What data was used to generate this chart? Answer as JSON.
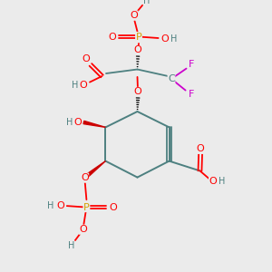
{
  "bg_color": "#ebebeb",
  "atom_colors": {
    "C": "#4d8080",
    "O": "#ff0000",
    "P": "#d4a000",
    "H": "#4d8080",
    "F": "#cc00cc",
    "bond": "#4d8080",
    "wedge_black": "#000000",
    "wedge_red": "#cc0000"
  },
  "figsize": [
    3.0,
    3.0
  ],
  "dpi": 100,
  "xlim": [
    0,
    10
  ],
  "ylim": [
    0,
    10
  ]
}
